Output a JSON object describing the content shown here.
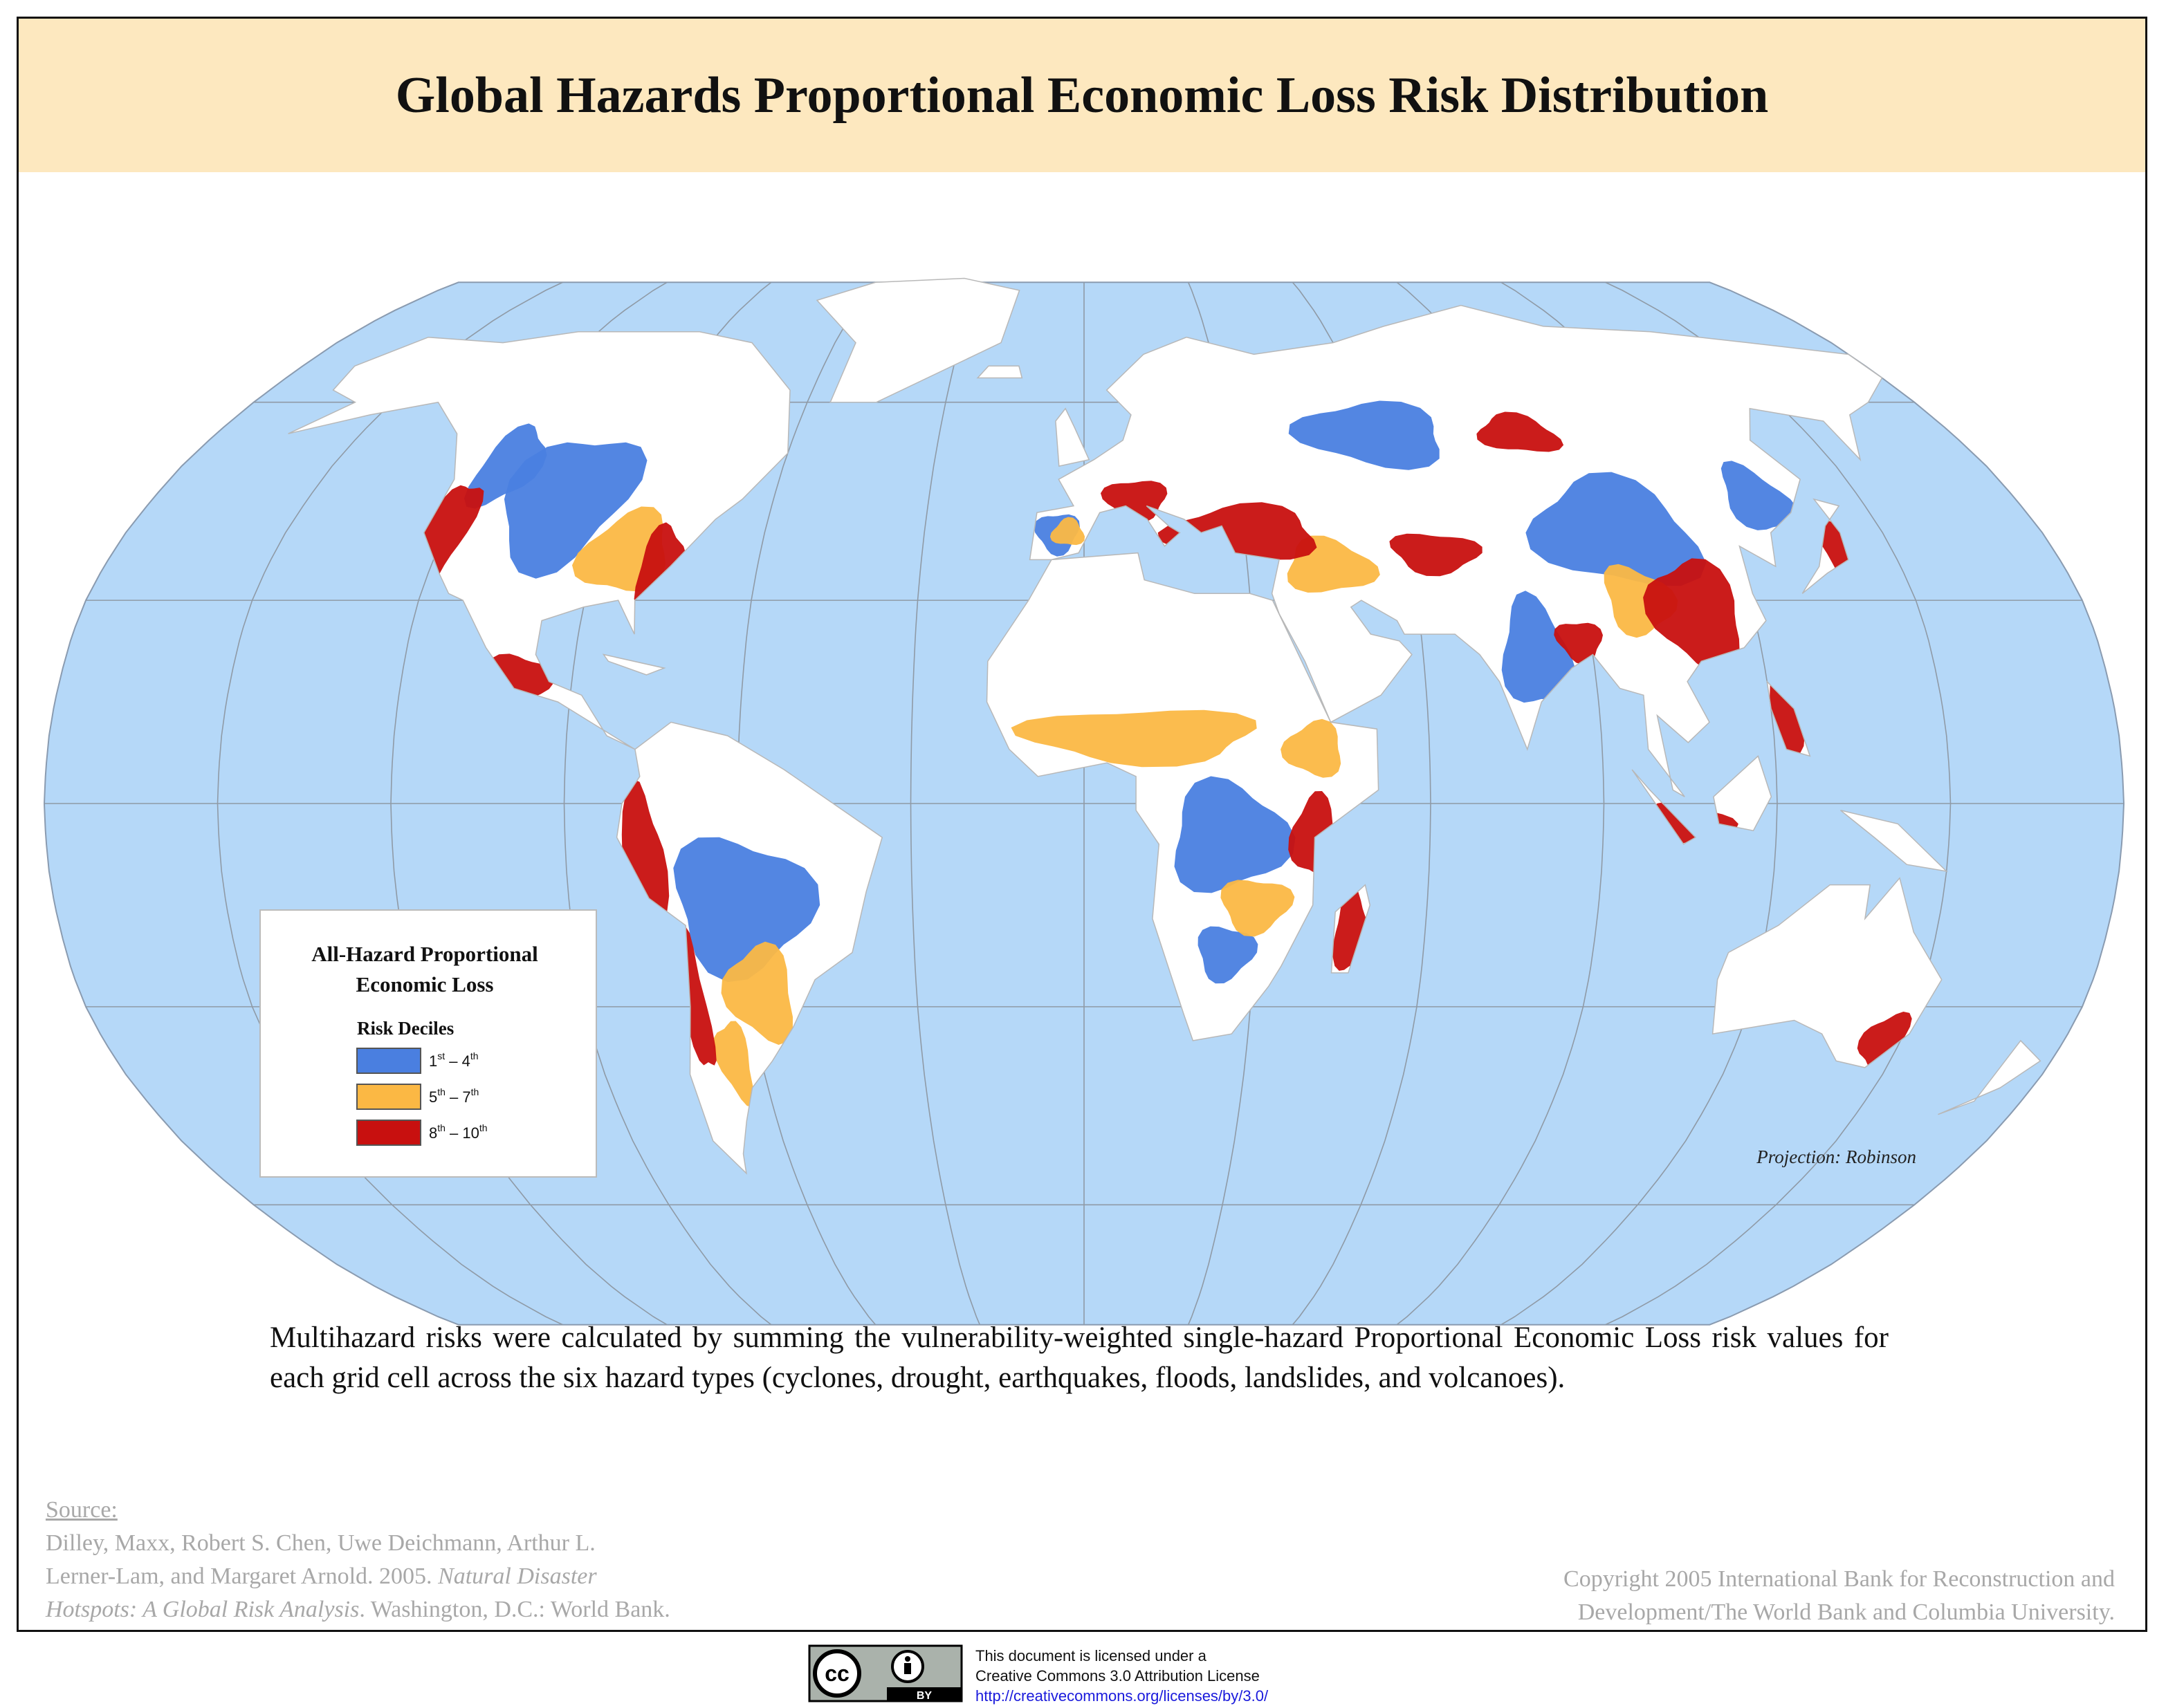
{
  "header": {
    "title": "Global Hazards Proportional Economic Loss Risk Distribution"
  },
  "map": {
    "projection_note": "Projection: Robinson",
    "legend": {
      "title_lines": [
        "All-Hazard Proportional",
        "Economic Loss"
      ],
      "subtitle": "Risk Deciles",
      "items": [
        {
          "color": "#4a7fe0",
          "label_parts": [
            "1",
            "st",
            " – 4",
            "th"
          ]
        },
        {
          "color": "#fbb844",
          "label_parts": [
            "5",
            "th",
            " – 7",
            "th"
          ]
        },
        {
          "color": "#c8100f",
          "label_parts": [
            "8",
            "th",
            " – 10",
            "th"
          ]
        }
      ]
    }
  },
  "description": "Multihazard risks were calculated by summing the vulnerability-weighted single-hazard Proportional Economic Loss risk values for each grid cell across the six hazard types (cyclones, drought, earthquakes, floods, landslides, and volcanoes).",
  "source": {
    "heading": "Source:",
    "lines": [
      [
        {
          "text": "Dilley, Maxx, Robert S. Chen, Uwe Deichmann, Arthur L.",
          "italic": false
        }
      ],
      [
        {
          "text": "Lerner-Lam, and Margaret Arnold. 2005. ",
          "italic": false
        },
        {
          "text": "Natural Disaster",
          "italic": true
        }
      ],
      [
        {
          "text": "Hotspots: A Global Risk Analysis",
          "italic": true
        },
        {
          "text": ". Washington, D.C.: World Bank.",
          "italic": false
        }
      ]
    ]
  },
  "copyright": {
    "lines": [
      "Copyright 2005 International Bank for Reconstruction and",
      "Development/The World Bank and Columbia University."
    ]
  },
  "license": {
    "badge": {
      "logo": "cc",
      "tag": "BY"
    },
    "lines": [
      "This document is licensed under a",
      "Creative Commons 3.0 Attribution License",
      "http://creativecommons.org/licenses/by/3.0/"
    ]
  }
}
